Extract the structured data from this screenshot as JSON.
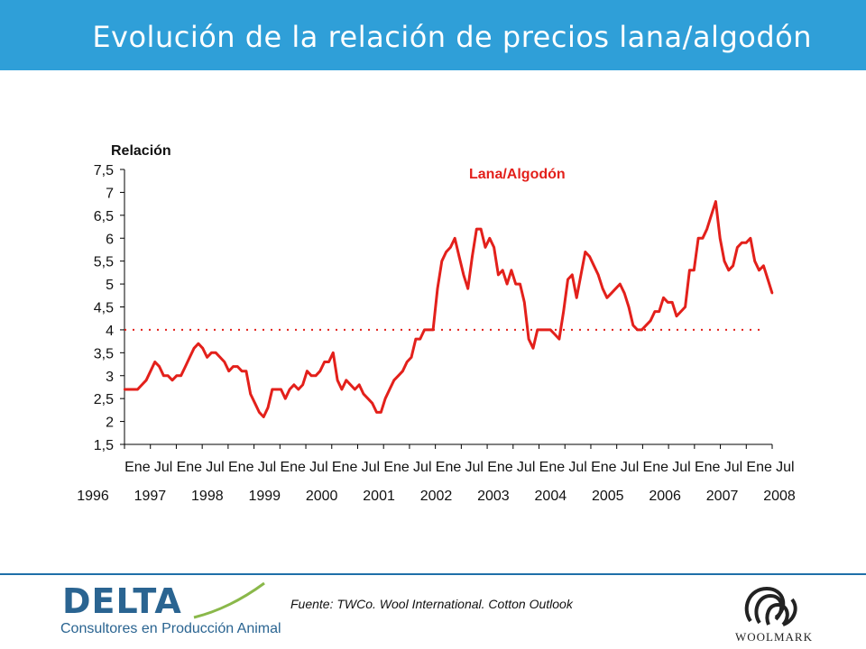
{
  "header": {
    "title": "Evolución de la relación de precios lana/algodón"
  },
  "footer": {
    "source": "Fuente:  TWCo. Wool International. Cotton Outlook",
    "logo_delta": {
      "word": "DELTA",
      "subtitle": "Consultores en Producción Animal"
    },
    "logo_woolmark": "WOOLMARK"
  },
  "colors": {
    "header": "#2f9fd8",
    "series": "#e3201b",
    "reference_line": "#e3201b",
    "text": "#111111"
  },
  "chart_data": {
    "type": "line",
    "title": "",
    "ylabel": "Relación",
    "ylim": [
      1.5,
      7.5
    ],
    "yticks": [
      "1,5",
      "2",
      "2,5",
      "3",
      "3,5",
      "4",
      "4,5",
      "5",
      "5,5",
      "6",
      "6,5",
      "7",
      "7,5"
    ],
    "month_labels": [
      "Ene",
      "Jul",
      "Ene",
      "Jul",
      "Ene",
      "Jul",
      "Ene",
      "Jul",
      "Ene",
      "Jul",
      "Ene",
      "Jul",
      "Ene",
      "Jul",
      "Ene",
      "Jul",
      "Ene",
      "Jul",
      "Ene",
      "Jul",
      "Ene",
      "Jul",
      "Ene",
      "Jul",
      "Ene",
      "Jul"
    ],
    "year_labels": [
      "1996",
      "1997",
      "1998",
      "1999",
      "2000",
      "2001",
      "2002",
      "2003",
      "2004",
      "2005",
      "2006",
      "2007",
      "2008"
    ],
    "x_start": "1996-01",
    "reference_line": {
      "y": 4,
      "style": "dotted"
    },
    "series": [
      {
        "name": "Lana/Algodón",
        "values": [
          2.7,
          2.7,
          2.7,
          2.7,
          2.8,
          2.9,
          3.1,
          3.3,
          3.2,
          3.0,
          3.0,
          2.9,
          3.0,
          3.0,
          3.2,
          3.4,
          3.6,
          3.7,
          3.6,
          3.4,
          3.5,
          3.5,
          3.4,
          3.3,
          3.1,
          3.2,
          3.2,
          3.1,
          3.1,
          2.6,
          2.4,
          2.2,
          2.1,
          2.3,
          2.7,
          2.7,
          2.7,
          2.5,
          2.7,
          2.8,
          2.7,
          2.8,
          3.1,
          3.0,
          3.0,
          3.1,
          3.3,
          3.3,
          3.5,
          2.9,
          2.7,
          2.9,
          2.8,
          2.7,
          2.8,
          2.6,
          2.5,
          2.4,
          2.2,
          2.2,
          2.5,
          2.7,
          2.9,
          3.0,
          3.1,
          3.3,
          3.4,
          3.8,
          3.8,
          4.0,
          4.0,
          4.0,
          4.9,
          5.5,
          5.7,
          5.8,
          6.0,
          5.6,
          5.2,
          4.9,
          5.6,
          6.2,
          6.2,
          5.8,
          6.0,
          5.8,
          5.2,
          5.3,
          5.0,
          5.3,
          5.0,
          5.0,
          4.6,
          3.8,
          3.6,
          4.0,
          4.0,
          4.0,
          4.0,
          3.9,
          3.8,
          4.4,
          5.1,
          5.2,
          4.7,
          5.2,
          5.7,
          5.6,
          5.4,
          5.2,
          4.9,
          4.7,
          4.8,
          4.9,
          5.0,
          4.8,
          4.5,
          4.1,
          4.0,
          4.0,
          4.1,
          4.2,
          4.4,
          4.4,
          4.7,
          4.6,
          4.6,
          4.3,
          4.4,
          4.5,
          5.3,
          5.3,
          6.0,
          6.0,
          6.2,
          6.5,
          6.8,
          6.0,
          5.5,
          5.3,
          5.4,
          5.8,
          5.9,
          5.9,
          6.0,
          5.5,
          5.3,
          5.4,
          5.1,
          4.8
        ]
      }
    ]
  }
}
